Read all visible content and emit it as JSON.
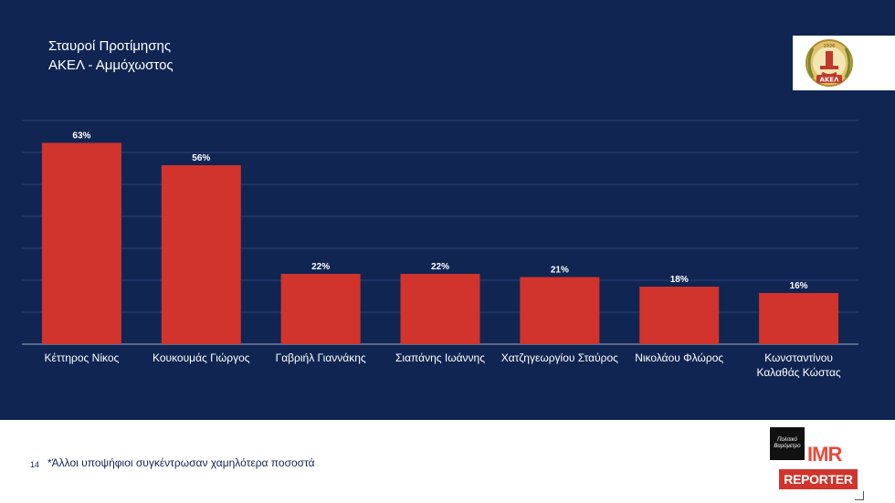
{
  "slide": {
    "title_line1": "Σταυροί Προτίμησης",
    "title_line2": "ΑΚΕΛ - Αμμόχωστος",
    "page_number": "14",
    "footnote": "*Άλλοι υποψήφιοι συγκέντρωσαν χαμηλότερα ποσοστά"
  },
  "logos": {
    "akel_emblem_text": "ΑΚΕΛ",
    "akel_year": "1926",
    "barometer_text": "Πολιτικό Βαρόμετρο",
    "imr_text": "IMR",
    "reporter_text": "REPORTER"
  },
  "colors": {
    "background": "#102552",
    "bar": "#d0342c",
    "text": "#ffffff",
    "footer_text": "#102552"
  },
  "chart_data": {
    "type": "bar",
    "categories": [
      [
        "Κέττηρος Νίκος"
      ],
      [
        "Κουκουμάς Γιώργος"
      ],
      [
        "Γαβριήλ Γιαννάκης"
      ],
      [
        "Σιαπάνης Ιωάννης"
      ],
      [
        "Χατζηγεωργίου Σταύρος"
      ],
      [
        "Νικολάου Φλώρος"
      ],
      [
        "Κωνσταντίνου",
        "Καλαθάς Κώστας"
      ]
    ],
    "values": [
      63,
      56,
      22,
      22,
      21,
      18,
      16
    ],
    "value_labels": [
      "63%",
      "56%",
      "22%",
      "22%",
      "21%",
      "18%",
      "16%"
    ],
    "ylim": [
      0,
      70
    ],
    "grid": true,
    "legend": "none"
  }
}
